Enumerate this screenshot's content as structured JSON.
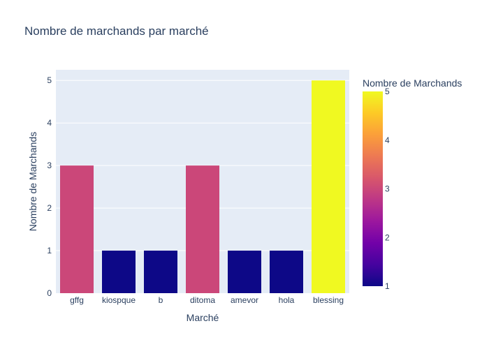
{
  "chart_data": {
    "type": "bar",
    "title": "Nombre de marchands par marché",
    "xlabel": "Marché",
    "ylabel": "Nombre de Marchands",
    "categories": [
      "gffg",
      "kiospque",
      "b",
      "ditoma",
      "amevor",
      "hola",
      "blessing"
    ],
    "values": [
      3,
      1,
      1,
      3,
      1,
      1,
      5
    ],
    "ylim": [
      0,
      5.25
    ],
    "yticks": [
      0,
      1,
      2,
      3,
      4,
      5
    ],
    "grid": true,
    "colorbar": {
      "title": "Nombre de Marchands",
      "range": [
        1,
        5
      ],
      "ticks": [
        1,
        2,
        3,
        4,
        5
      ],
      "colorscale": [
        "#0d0887",
        "#46039f",
        "#7201a8",
        "#9c179e",
        "#bd3786",
        "#d8576b",
        "#ed7953",
        "#fb9f3a",
        "#fdca26",
        "#f0f921"
      ]
    },
    "plot_background": "#e5ecf6",
    "gridline_color": "#ffffff"
  }
}
